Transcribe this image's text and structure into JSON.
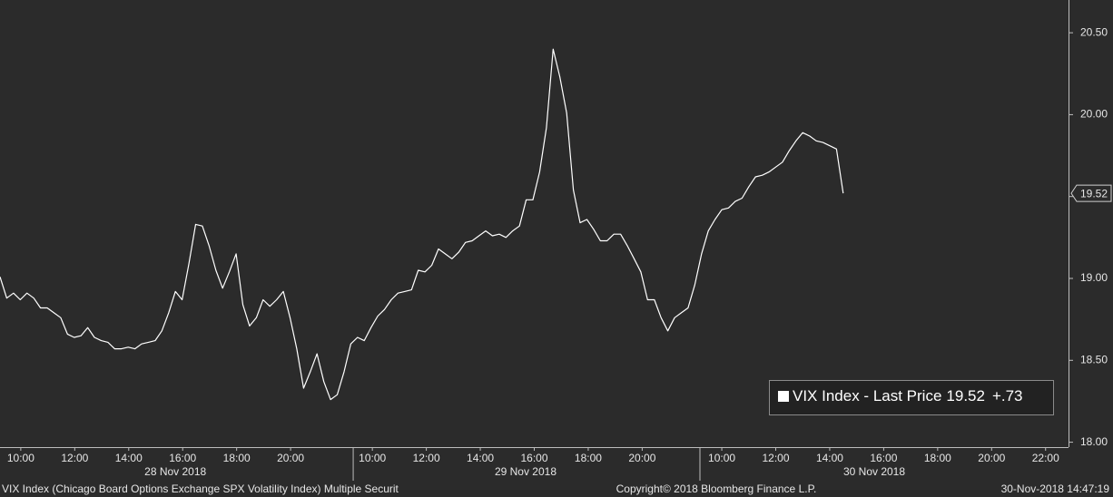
{
  "chart_data": {
    "type": "line",
    "x": [
      0,
      0.25,
      0.5,
      0.75,
      1,
      1.25,
      1.5,
      1.75,
      2,
      2.25,
      2.5,
      2.75,
      3,
      3.25,
      3.5,
      3.75,
      4,
      4.25,
      4.5,
      4.75,
      5,
      5.25,
      5.5,
      5.75,
      6,
      6.25,
      6.5,
      6.75,
      7,
      7.25,
      7.5,
      7.75,
      8,
      8.25,
      8.5,
      8.75,
      9,
      9.25,
      9.5,
      9.75,
      10,
      10.25,
      10.5,
      10.75,
      11,
      11.25,
      11.5,
      11.75,
      12,
      12.25,
      12.5,
      12.75,
      13,
      13.25,
      13.5,
      13.75,
      14,
      14.25,
      14.5,
      14.75,
      15,
      15.25,
      15.5,
      15.75,
      16,
      16.25,
      16.5,
      16.75,
      17,
      17.25,
      17.5,
      17.75,
      18,
      18.25,
      18.5,
      18.75,
      19,
      19.25,
      19.5,
      19.75,
      20,
      20.25,
      20.5,
      20.75,
      21,
      21.25,
      21.5,
      21.75,
      22,
      22.25,
      22.5,
      22.75,
      23,
      23.25,
      23.5,
      23.75,
      24,
      24.25,
      24.5,
      24.75,
      25,
      25.25,
      25.5,
      25.75,
      26,
      26.25,
      26.5,
      26.75,
      27,
      27.25,
      27.5,
      27.75,
      28,
      28.25,
      28.5,
      28.75,
      29,
      29.25,
      29.5,
      29.75,
      30,
      30.25,
      30.5,
      30.75,
      31,
      31.25
    ],
    "series": [
      {
        "name": "VIX Index - Last Price",
        "color": "#ffffff",
        "values": [
          19.01,
          18.88,
          18.91,
          18.87,
          18.91,
          18.88,
          18.82,
          18.82,
          18.79,
          18.76,
          18.66,
          18.64,
          18.65,
          18.7,
          18.64,
          18.62,
          18.61,
          18.57,
          18.57,
          18.58,
          18.57,
          18.6,
          18.61,
          18.62,
          18.68,
          18.79,
          18.92,
          18.87,
          19.09,
          19.33,
          19.32,
          19.2,
          19.05,
          18.94,
          19.04,
          19.15,
          18.84,
          18.71,
          18.76,
          18.87,
          18.83,
          18.87,
          18.92,
          18.76,
          18.57,
          18.33,
          18.43,
          18.54,
          18.37,
          18.26,
          18.29,
          18.43,
          18.6,
          18.64,
          18.62,
          18.7,
          18.77,
          18.81,
          18.87,
          18.91,
          18.92,
          18.93,
          19.05,
          19.04,
          19.08,
          19.18,
          19.15,
          19.12,
          19.16,
          19.22,
          19.23,
          19.26,
          19.29,
          19.26,
          19.27,
          19.25,
          19.29,
          19.32,
          19.48,
          19.48,
          19.65,
          19.92,
          20.4,
          20.23,
          20.01,
          19.54,
          19.34,
          19.36,
          19.3,
          19.23,
          19.23,
          19.27,
          19.27,
          19.2,
          19.12,
          19.04,
          18.87,
          18.87,
          18.76,
          18.68,
          18.76,
          18.79,
          18.82,
          18.96,
          19.15,
          19.29,
          19.36,
          19.42,
          19.43,
          19.47,
          19.49,
          19.56,
          19.62,
          19.63,
          19.65,
          19.68,
          19.71,
          19.78,
          19.84,
          19.89,
          19.87,
          19.84,
          19.83,
          19.81,
          19.79,
          19.52
        ]
      }
    ],
    "legend_change": "+.73",
    "xlim": [
      0,
      39.6
    ],
    "xticks": [
      {
        "value": 0.77,
        "label": "10:00"
      },
      {
        "value": 2.77,
        "label": "12:00"
      },
      {
        "value": 4.77,
        "label": "14:00"
      },
      {
        "value": 6.77,
        "label": "16:00"
      },
      {
        "value": 8.77,
        "label": "18:00"
      },
      {
        "value": 10.77,
        "label": "20:00"
      },
      {
        "value": 13.8,
        "label": "10:00"
      },
      {
        "value": 15.8,
        "label": "12:00"
      },
      {
        "value": 17.8,
        "label": "14:00"
      },
      {
        "value": 19.8,
        "label": "16:00"
      },
      {
        "value": 21.8,
        "label": "18:00"
      },
      {
        "value": 23.8,
        "label": "20:00"
      },
      {
        "value": 26.75,
        "label": "10:00"
      },
      {
        "value": 28.75,
        "label": "12:00"
      },
      {
        "value": 30.75,
        "label": "14:00"
      },
      {
        "value": 32.75,
        "label": "16:00"
      },
      {
        "value": 34.75,
        "label": "18:00"
      },
      {
        "value": 36.75,
        "label": "20:00"
      },
      {
        "value": 38.75,
        "label": "22:00"
      }
    ],
    "day_labels": [
      {
        "value": 6.5,
        "label": "28 Nov 2018"
      },
      {
        "value": 19.48,
        "label": "29 Nov 2018"
      },
      {
        "value": 32.4,
        "label": "30 Nov 2018"
      }
    ],
    "session_breaks": [
      13.09,
      25.94
    ],
    "ylim": [
      17.97,
      20.7
    ],
    "yticks": [
      {
        "value": 18,
        "label": "18.00"
      },
      {
        "value": 18.5,
        "label": "18.50"
      },
      {
        "value": 19,
        "label": "19.00"
      },
      {
        "value": 19.5,
        "label": "19.50"
      },
      {
        "value": 20,
        "label": "20.00"
      },
      {
        "value": 20.5,
        "label": "20.50"
      }
    ],
    "footer_left": "VIX Index (Chicago Board Options Exchange SPX Volatility Index) Multiple Securit",
    "footer_center": "Copyright© 2018 Bloomberg Finance L.P.",
    "footer_right": "30-Nov-2018 14:47:19"
  }
}
